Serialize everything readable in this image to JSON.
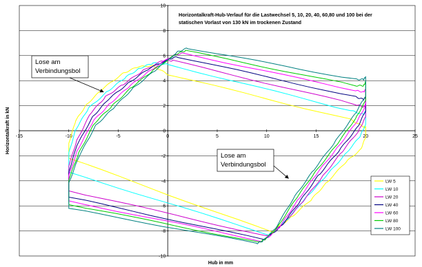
{
  "chart_data": {
    "type": "line",
    "title_line1": "Horizontalkraft-Hub-Verlauf für die Lastwechsel 5, 10, 20, 40, 60,80 und 100 bei der",
    "title_line2": "statischen Vorlast von 130 kN im trockenen Zustand",
    "xlabel": "Hub in mm",
    "ylabel": "Horizontalkraft in kN",
    "xlim": [
      -15,
      25
    ],
    "ylim": [
      -10,
      10
    ],
    "x_ticks": [
      -15,
      -10,
      -5,
      0,
      5,
      10,
      15,
      20,
      25
    ],
    "y_ticks": [
      -10,
      -8,
      -6,
      -4,
      -2,
      0,
      2,
      4,
      6,
      8,
      10
    ],
    "grid": "horizontal",
    "legend_position": "bottom-right",
    "annotations": [
      {
        "line1": "Lose am",
        "line2": "Verbindungsbol",
        "arrow_to": [
          -6.5,
          3.1
        ]
      },
      {
        "line1": "Lose am",
        "line2": "Verbindungsbol",
        "arrow_to": [
          12.2,
          -3.8
        ]
      }
    ],
    "series": [
      {
        "name": "LW  5",
        "color": "#ffff00",
        "points": [
          [
            -10,
            -2.2
          ],
          [
            -10,
            -1
          ],
          [
            -9.3,
            0.8
          ],
          [
            -8.2,
            2.1
          ],
          [
            -6.5,
            3.4
          ],
          [
            -4.5,
            4.6
          ],
          [
            -3,
            5.1
          ],
          [
            -1.5,
            5.2
          ],
          [
            0,
            4.5
          ],
          [
            18.5,
            0.9
          ],
          [
            19.8,
            0.3
          ],
          [
            20,
            0.3
          ],
          [
            20,
            -0.5
          ],
          [
            19.5,
            -1.5
          ],
          [
            18,
            -2.5
          ],
          [
            16,
            -4.2
          ],
          [
            14.5,
            -5.5
          ],
          [
            12.5,
            -6.9
          ],
          [
            11,
            -7.8
          ],
          [
            10.5,
            -8.1
          ],
          [
            -10,
            -2.2
          ]
        ]
      },
      {
        "name": "LW 10",
        "color": "#00ffff",
        "points": [
          [
            -10,
            -3.3
          ],
          [
            -10,
            -1.8
          ],
          [
            -9.3,
            0.1
          ],
          [
            -8,
            1.8
          ],
          [
            -6,
            3.2
          ],
          [
            -4.2,
            4.3
          ],
          [
            -2.8,
            5
          ],
          [
            -1.5,
            5.4
          ],
          [
            0,
            5.3
          ],
          [
            18.5,
            1.6
          ],
          [
            19.8,
            1.3
          ],
          [
            20,
            1.6
          ],
          [
            20,
            0.5
          ],
          [
            19.4,
            -0.5
          ],
          [
            17.8,
            -2
          ],
          [
            15.8,
            -3.8
          ],
          [
            14,
            -5.3
          ],
          [
            12.2,
            -7
          ],
          [
            10.8,
            -8
          ],
          [
            10.2,
            -8.3
          ],
          [
            -10,
            -3.3
          ]
        ]
      },
      {
        "name": "LW 20",
        "color": "#cc00cc",
        "points": [
          [
            -10,
            -4.8
          ],
          [
            -10,
            -2.8
          ],
          [
            -9.2,
            -0.8
          ],
          [
            -7.8,
            1.4
          ],
          [
            -6.3,
            2.7
          ],
          [
            -4.5,
            3.7
          ],
          [
            -2.5,
            4.8
          ],
          [
            -0.5,
            5.6
          ],
          [
            0.5,
            5.6
          ],
          [
            19,
            2.1
          ],
          [
            19.8,
            1.9
          ],
          [
            20,
            2.1
          ],
          [
            20,
            1.1
          ],
          [
            19.3,
            0
          ],
          [
            17.5,
            -1.8
          ],
          [
            15.5,
            -3.8
          ],
          [
            13.5,
            -5.8
          ],
          [
            11.8,
            -7.3
          ],
          [
            10.5,
            -8.2
          ],
          [
            10,
            -8.4
          ],
          [
            -10,
            -4.8
          ]
        ]
      },
      {
        "name": "LW 40",
        "color": "#000080",
        "points": [
          [
            -10,
            -5.3
          ],
          [
            -10,
            -3.3
          ],
          [
            -9.2,
            -1.2
          ],
          [
            -7.6,
            1.1
          ],
          [
            -6,
            2.5
          ],
          [
            -4,
            3.8
          ],
          [
            -2,
            4.9
          ],
          [
            0,
            5.7
          ],
          [
            1,
            5.9
          ],
          [
            19,
            2.7
          ],
          [
            19.8,
            2.5
          ],
          [
            20,
            2.7
          ],
          [
            20,
            1.6
          ],
          [
            19.2,
            0.3
          ],
          [
            17.3,
            -1.6
          ],
          [
            15.2,
            -3.6
          ],
          [
            13.3,
            -5.7
          ],
          [
            11.5,
            -7.6
          ],
          [
            10.3,
            -8.4
          ],
          [
            9.7,
            -8.7
          ],
          [
            -10,
            -5.3
          ]
        ]
      },
      {
        "name": "LW 60",
        "color": "#ff00ff",
        "points": [
          [
            -10,
            -5.6
          ],
          [
            -10,
            -3.6
          ],
          [
            -9.1,
            -1.5
          ],
          [
            -7.5,
            0.8
          ],
          [
            -5.8,
            2.2
          ],
          [
            -3.8,
            3.6
          ],
          [
            -1.8,
            4.8
          ],
          [
            0.5,
            6
          ],
          [
            1.5,
            6.2
          ],
          [
            19,
            3.2
          ],
          [
            19.8,
            3.1
          ],
          [
            20,
            3.3
          ],
          [
            20,
            2
          ],
          [
            19.1,
            0.7
          ],
          [
            17.1,
            -1.4
          ],
          [
            15,
            -3.5
          ],
          [
            13.1,
            -5.6
          ],
          [
            11.3,
            -7.7
          ],
          [
            10,
            -8.6
          ],
          [
            9.5,
            -8.8
          ],
          [
            -10,
            -5.6
          ]
        ]
      },
      {
        "name": "LW 80",
        "color": "#00cc00",
        "points": [
          [
            -10,
            -5.9
          ],
          [
            -10,
            -3.9
          ],
          [
            -9,
            -1.8
          ],
          [
            -7.4,
            0.6
          ],
          [
            -5.6,
            2
          ],
          [
            -3.6,
            3.5
          ],
          [
            -1.5,
            4.8
          ],
          [
            0.8,
            6.1
          ],
          [
            1.8,
            6.4
          ],
          [
            19,
            3.6
          ],
          [
            19.8,
            3.6
          ],
          [
            20,
            3.9
          ],
          [
            20,
            2.4
          ],
          [
            19,
            1
          ],
          [
            17,
            -1.2
          ],
          [
            14.8,
            -3.4
          ],
          [
            12.9,
            -5.5
          ],
          [
            11,
            -7.8
          ],
          [
            9.8,
            -8.7
          ],
          [
            9.2,
            -8.9
          ],
          [
            -10,
            -5.9
          ]
        ]
      },
      {
        "name": "LW 100",
        "color": "#008080",
        "points": [
          [
            -10,
            -6.2
          ],
          [
            -10,
            -4.2
          ],
          [
            -9,
            -2.1
          ],
          [
            -7.3,
            0.4
          ],
          [
            -5.5,
            1.8
          ],
          [
            -3.5,
            3.4
          ],
          [
            -1.3,
            4.8
          ],
          [
            1,
            6.3
          ],
          [
            2,
            6.6
          ],
          [
            19,
            4.1
          ],
          [
            19.8,
            4.1
          ],
          [
            20,
            4.3
          ],
          [
            20,
            2.8
          ],
          [
            18.9,
            1.3
          ],
          [
            16.8,
            -1
          ],
          [
            14.6,
            -3.3
          ],
          [
            12.7,
            -5.4
          ],
          [
            10.8,
            -7.9
          ],
          [
            9.6,
            -8.8
          ],
          [
            9,
            -9
          ],
          [
            -10,
            -6.2
          ]
        ]
      }
    ]
  }
}
